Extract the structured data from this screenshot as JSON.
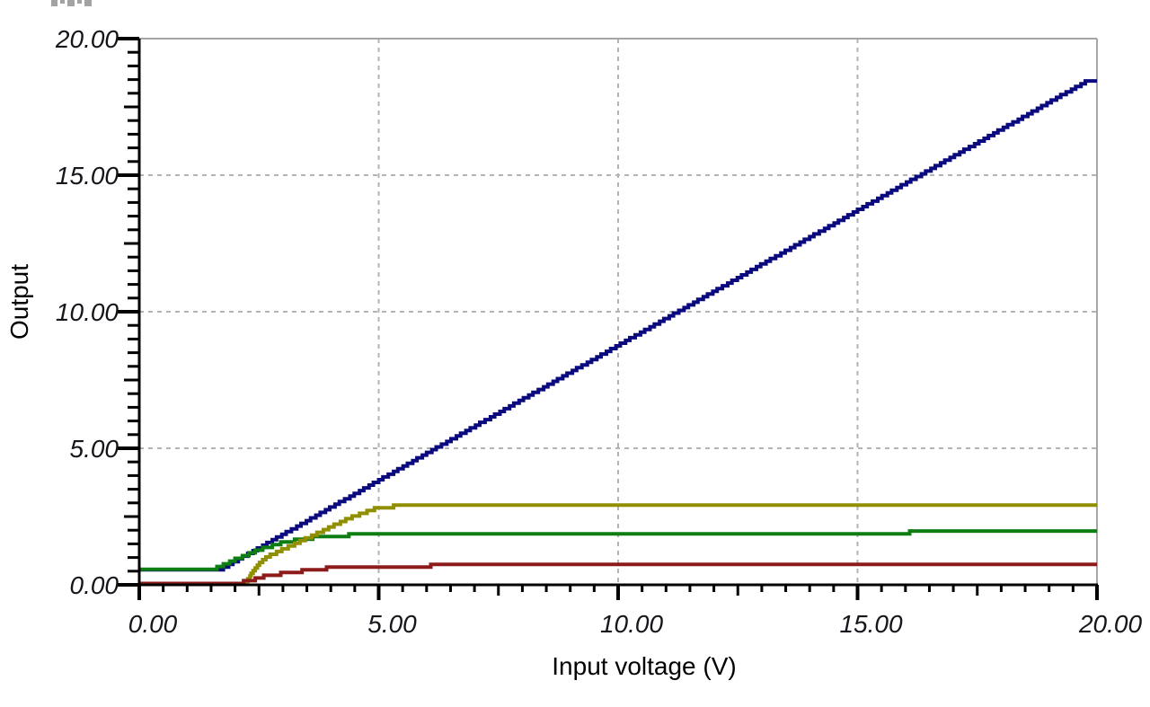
{
  "window": {
    "background": "#ffffff"
  },
  "decorations": {
    "top_left_clipped_text_artifact": true
  },
  "chart_data": {
    "type": "line",
    "title": "",
    "xlabel": "Input voltage (V)",
    "ylabel": "Output",
    "xlim": [
      0,
      20
    ],
    "ylim": [
      0,
      20
    ],
    "grid": true,
    "grid_style": "dashed",
    "legend": "none",
    "x_tick_labels": [
      {
        "value": 0,
        "label": "0.00"
      },
      {
        "value": 5,
        "label": "5.00"
      },
      {
        "value": 10,
        "label": "10.00"
      },
      {
        "value": 15,
        "label": "15.00"
      },
      {
        "value": 20,
        "label": "20.00"
      }
    ],
    "y_tick_labels": [
      {
        "value": 0,
        "label": "0.00"
      },
      {
        "value": 5,
        "label": "5.00"
      },
      {
        "value": 10,
        "label": "10.00"
      },
      {
        "value": 15,
        "label": "15.00"
      },
      {
        "value": 20,
        "label": "20.00"
      }
    ],
    "minor_tick_interval": 0.5,
    "medium_tick_interval": 2.5,
    "major_tick_interval": 5,
    "series": [
      {
        "name": "navy-linear-ramp",
        "color": "#0a0a7e",
        "points": [
          [
            0,
            0.55
          ],
          [
            1.7,
            0.55
          ],
          [
            19.8,
            18.45
          ],
          [
            20,
            18.48
          ]
        ]
      },
      {
        "name": "green-saturating-output",
        "color": "#0e7d12",
        "points": [
          [
            0,
            0.57
          ],
          [
            1.55,
            0.57
          ],
          [
            2.0,
            0.92
          ],
          [
            2.5,
            1.28
          ],
          [
            3.0,
            1.55
          ],
          [
            3.5,
            1.7
          ],
          [
            4.0,
            1.79
          ],
          [
            4.5,
            1.83
          ],
          [
            15.95,
            1.83
          ],
          [
            16.1,
            1.93
          ],
          [
            20,
            1.94
          ]
        ]
      },
      {
        "name": "olive-saturating-output",
        "color": "#8f8f00",
        "points": [
          [
            0,
            0.02
          ],
          [
            2.2,
            0.02
          ],
          [
            2.3,
            0.3
          ],
          [
            2.5,
            0.78
          ],
          [
            2.7,
            1.05
          ],
          [
            3.2,
            1.45
          ],
          [
            3.8,
            1.95
          ],
          [
            4.4,
            2.45
          ],
          [
            4.95,
            2.8
          ],
          [
            5.3,
            2.87
          ],
          [
            20,
            2.89
          ]
        ]
      },
      {
        "name": "dark-red-saturating-output",
        "color": "#8e1b1b",
        "points": [
          [
            0,
            0.05
          ],
          [
            2.0,
            0.05
          ],
          [
            2.3,
            0.14
          ],
          [
            2.6,
            0.3
          ],
          [
            3.0,
            0.42
          ],
          [
            3.4,
            0.5
          ],
          [
            3.85,
            0.56
          ],
          [
            4.0,
            0.66
          ],
          [
            6.0,
            0.66
          ],
          [
            6.1,
            0.72
          ],
          [
            20,
            0.72
          ]
        ]
      }
    ],
    "colors": {
      "grid": "#b3b3b3",
      "axis": "#000000",
      "border": "#a6a6a6",
      "tick_label": "#15151c"
    }
  }
}
